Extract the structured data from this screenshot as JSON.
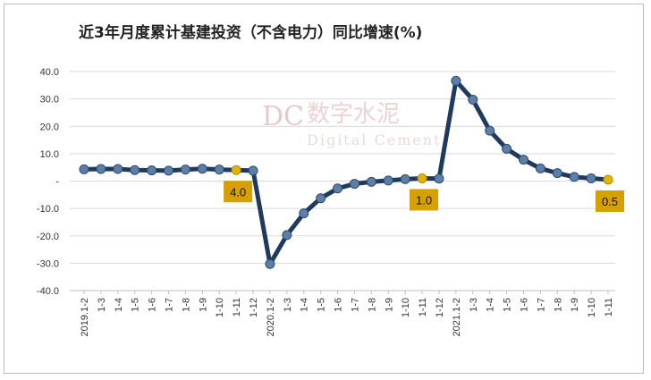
{
  "chart_data": {
    "type": "line",
    "title": "近3年月度累计基建投资（不含电力）同比增速(%)",
    "ylim": [
      -40,
      40
    ],
    "yticks": [
      "40.0",
      "30.0",
      "20.0",
      "10.0",
      "-",
      "-10.0",
      "-20.0",
      "-30.0",
      "-40.0"
    ],
    "ytick_values": [
      40,
      30,
      20,
      10,
      0,
      -10,
      -20,
      -30,
      -40
    ],
    "grid": "horizontal",
    "categories": [
      "2019.1-2",
      "1-3",
      "1-4",
      "1-5",
      "1-6",
      "1-7",
      "1-8",
      "1-9",
      "1-10",
      "1-11",
      "1-12",
      "2020.1-2",
      "1-3",
      "1-4",
      "1-5",
      "1-6",
      "1-7",
      "1-8",
      "1-9",
      "1-10",
      "1-11",
      "1-12",
      "2021.1-2",
      "1-3",
      "1-4",
      "1-5",
      "1-6",
      "1-7",
      "1-8",
      "1-9",
      "1-10",
      "1-11"
    ],
    "series": [
      {
        "values": [
          4.3,
          4.4,
          4.4,
          4.0,
          3.9,
          3.8,
          4.2,
          4.5,
          4.2,
          4.0,
          3.8,
          -30.3,
          -19.7,
          -11.8,
          -6.3,
          -2.7,
          -1.0,
          -0.3,
          0.2,
          0.7,
          1.0,
          0.9,
          36.6,
          29.7,
          18.4,
          11.8,
          7.8,
          4.6,
          2.9,
          1.5,
          1.0,
          0.5
        ],
        "line_color": "#1f3a5f",
        "marker_color": "#5b7fa6",
        "highlight_color": "#e0b400"
      }
    ],
    "highlights": [
      {
        "index": 9,
        "label": "4.0"
      },
      {
        "index": 20,
        "label": "1.0"
      },
      {
        "index": 31,
        "label": "0.5"
      }
    ],
    "callout_fill": "#d6a000"
  },
  "watermark": {
    "logo": "DC",
    "cn": "数字水泥",
    "en": "Digital Cement"
  }
}
